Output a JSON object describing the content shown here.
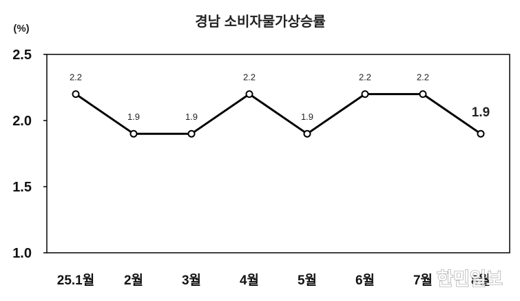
{
  "chart_data": {
    "type": "line",
    "title": "경남 소비자물가상승률",
    "ylabel": "(%)",
    "xlabel": "",
    "categories": [
      "25.1월",
      "2월",
      "3월",
      "4월",
      "5월",
      "6월",
      "7월",
      "8월"
    ],
    "series": [
      {
        "values": [
          2.2,
          1.9,
          1.9,
          2.2,
          1.9,
          2.2,
          2.2,
          1.9
        ]
      }
    ],
    "ylim": [
      1.0,
      2.5
    ],
    "yticks": [
      "2.5",
      "2.0",
      "1.5",
      "1.0"
    ],
    "grid": false,
    "legend": "none",
    "data_labels": true,
    "line_color": "#000000",
    "marker_fill": "#FFFFFF",
    "label_color": "#222222",
    "highlight_label": {
      "index": 7,
      "color": "#FF0000"
    }
  },
  "watermark": "한민일보"
}
